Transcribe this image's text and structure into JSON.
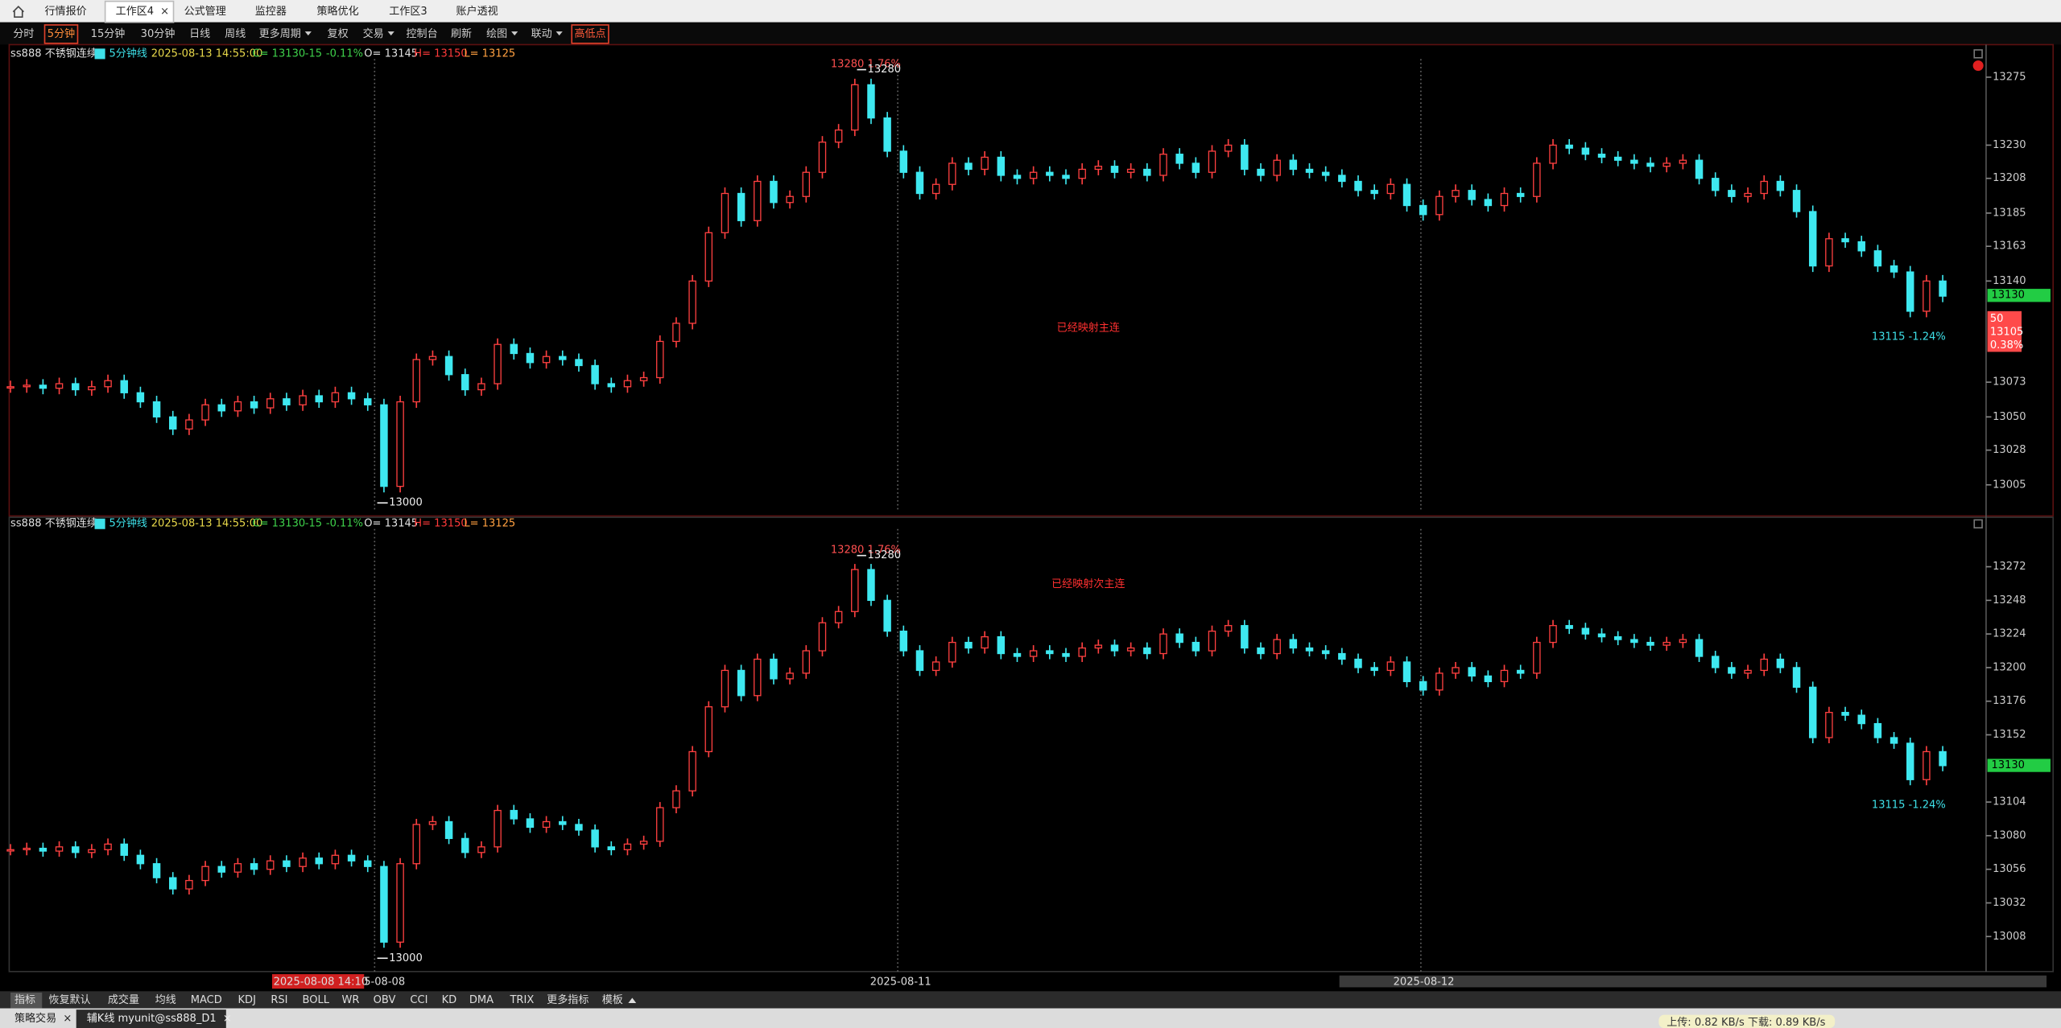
{
  "tabs": [
    "行情报价",
    "工作区4",
    "公式管理",
    "监控器",
    "策略优化",
    "工作区3",
    "账户透视"
  ],
  "toolbar": [
    "分时",
    "5分钟",
    "15分钟",
    "30分钟",
    "日线",
    "周线",
    "更多周期",
    "复权",
    "交易",
    "控制台",
    "刷新",
    "绘图",
    "联动",
    "高低点"
  ],
  "chart_data": [
    {
      "type": "candlestick",
      "info": [
        "ss888 不锈钢连续",
        "5分钟线",
        "2025-08-13 14:55:00",
        "C= 13130",
        "-15",
        "-0.11%",
        "O= 13145",
        "H= 13150",
        "L= 13125"
      ],
      "ylim": [
        12987,
        13287
      ],
      "yticks": [
        13275,
        13230,
        13208,
        13185,
        13163,
        13140,
        13073,
        13050,
        13028,
        13005
      ],
      "last_price": "13130",
      "side_box": [
        "50",
        "13105",
        "0.38%"
      ],
      "high_note": "13280 1.76%",
      "high_label": "13280",
      "low_label": "13000",
      "end_note": "13115 -1.24%",
      "mapping_note": "已经映射主连",
      "values": [
        13070,
        13071,
        13069,
        13072,
        13068,
        13070,
        13074,
        13066,
        13060,
        13050,
        13042,
        13048,
        13058,
        13054,
        13060,
        13056,
        13062,
        13058,
        13064,
        13060,
        13066,
        13062,
        13058,
        13004,
        13060,
        13088,
        13090,
        13078,
        13068,
        13072,
        13098,
        13092,
        13086,
        13090,
        13088,
        13084,
        13072,
        13070,
        13074,
        13076,
        13100,
        13112,
        13140,
        13172,
        13198,
        13180,
        13206,
        13192,
        13196,
        13212,
        13232,
        13240,
        13270,
        13248,
        13226,
        13212,
        13198,
        13204,
        13218,
        13214,
        13222,
        13210,
        13208,
        13212,
        13210,
        13208,
        13214,
        13216,
        13212,
        13214,
        13210,
        13224,
        13218,
        13212,
        13226,
        13230,
        13214,
        13210,
        13220,
        13214,
        13212,
        13210,
        13206,
        13200,
        13198,
        13204,
        13190,
        13184,
        13196,
        13200,
        13194,
        13190,
        13198,
        13196,
        13218,
        13230,
        13228,
        13224,
        13222,
        13220,
        13218,
        13216,
        13218,
        13220,
        13208,
        13200,
        13196,
        13198,
        13206,
        13200,
        13186,
        13150,
        13168,
        13166,
        13160,
        13150,
        13146,
        13120,
        13140,
        13130
      ]
    },
    {
      "type": "candlestick",
      "info": [
        "ss888 不锈钢连续",
        "5分钟线",
        "2025-08-13 14:55:00",
        "C= 13130",
        "-15",
        "-0.11%",
        "O= 13145",
        "H= 13150",
        "L= 13125"
      ],
      "ylim": [
        12983,
        13297
      ],
      "yticks": [
        13272,
        13248,
        13224,
        13200,
        13176,
        13152,
        13104,
        13080,
        13056,
        13032,
        13008
      ],
      "last_price": "13130",
      "high_note": "13280 1.76%",
      "high_label": "13280",
      "low_label": "13000",
      "end_note": "13115 -1.24%",
      "mapping_note": "已经映射次主连",
      "values": [
        13070,
        13071,
        13069,
        13072,
        13068,
        13070,
        13074,
        13066,
        13060,
        13050,
        13042,
        13048,
        13058,
        13054,
        13060,
        13056,
        13062,
        13058,
        13064,
        13060,
        13066,
        13062,
        13058,
        13004,
        13060,
        13088,
        13090,
        13078,
        13068,
        13072,
        13098,
        13092,
        13086,
        13090,
        13088,
        13084,
        13072,
        13070,
        13074,
        13076,
        13100,
        13112,
        13140,
        13172,
        13198,
        13180,
        13206,
        13192,
        13196,
        13212,
        13232,
        13240,
        13270,
        13248,
        13226,
        13212,
        13198,
        13204,
        13218,
        13214,
        13222,
        13210,
        13208,
        13212,
        13210,
        13208,
        13214,
        13216,
        13212,
        13214,
        13210,
        13224,
        13218,
        13212,
        13226,
        13230,
        13214,
        13210,
        13220,
        13214,
        13212,
        13210,
        13206,
        13200,
        13198,
        13204,
        13190,
        13184,
        13196,
        13200,
        13194,
        13190,
        13198,
        13196,
        13218,
        13230,
        13228,
        13224,
        13222,
        13220,
        13218,
        13216,
        13218,
        13220,
        13208,
        13200,
        13196,
        13198,
        13206,
        13200,
        13186,
        13150,
        13168,
        13166,
        13160,
        13150,
        13146,
        13120,
        13140,
        13130
      ]
    }
  ],
  "date_axis": [
    "2025-08-08 14:10",
    "5-08-08",
    "2025-08-11",
    "2025-08-12"
  ],
  "indicator_tabs": [
    "指标",
    "恢复默认",
    "成交量",
    "均线",
    "MACD",
    "KDJ",
    "RSI",
    "BOLL",
    "WR",
    "OBV",
    "CCI",
    "KD",
    "DMA",
    "TRIX",
    "更多指标",
    "模板"
  ],
  "status": {
    "tabs": [
      "策略交易",
      "辅K线 myunit@ss888_D1"
    ],
    "network": "上传: 0.82 KB/s   下载: 0.89 KB/s"
  }
}
